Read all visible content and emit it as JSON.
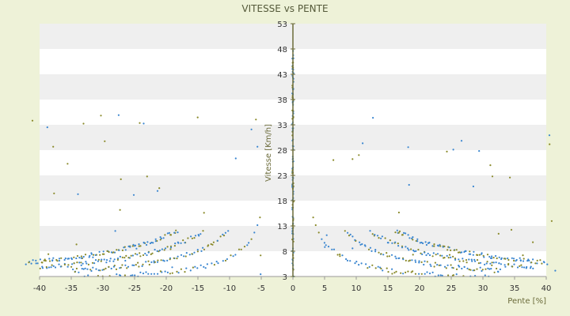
{
  "chart_data": {
    "type": "scatter",
    "title": "VITESSE vs PENTE",
    "xlabel": "Pente [%]",
    "ylabel": "Vitesse [Km/h]",
    "xlim": [
      -40,
      40
    ],
    "ylim": [
      3,
      53
    ],
    "xticks": [
      "-40",
      "-35",
      "-30",
      "-25",
      "-20",
      "-15",
      "-10",
      "-5",
      "0",
      "5",
      "10",
      "15",
      "20",
      "25",
      "30",
      "35",
      "40"
    ],
    "yticks": [
      "3",
      "8",
      "13",
      "18",
      "23",
      "28",
      "33",
      "38",
      "43",
      "48",
      "53"
    ],
    "grid": "horizontal alternating bands",
    "legend": "none",
    "series": [
      {
        "color": "#3a86d0",
        "marker": "dot"
      },
      {
        "color": "#8a8a2a",
        "marker": "dot"
      }
    ],
    "curves": [
      {
        "k": 210,
        "x_range": [
          3,
          33
        ],
        "note_side": "both"
      },
      {
        "k": 430,
        "x_range": [
          8,
          33
        ]
      },
      {
        "k": 640,
        "x_range": [
          12,
          38
        ]
      },
      {
        "k": 860,
        "x_range": [
          16,
          40
        ]
      }
    ]
  },
  "colors": {
    "background": "#eef2d8",
    "plot_band_light": "#ffffff",
    "plot_band_dark": "#efefef",
    "point_blue": "#3a86d0",
    "point_olive": "#8a8a2a",
    "axis_line": "#6b6b3a"
  }
}
